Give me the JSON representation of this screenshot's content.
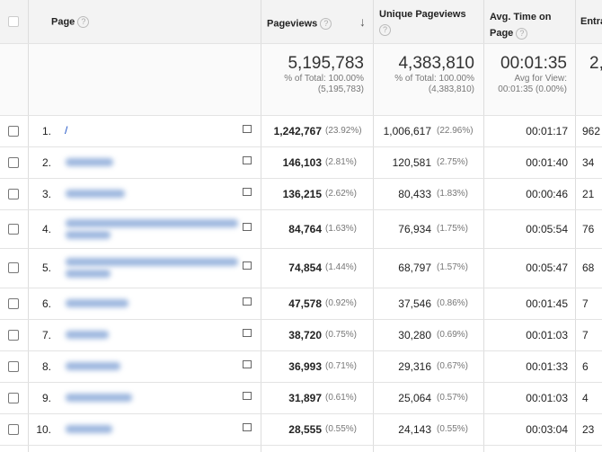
{
  "header": {
    "page": "Page",
    "pageviews": "Pageviews",
    "unique_pageviews": "Unique Pageviews",
    "avg_time": "Avg. Time on Page",
    "entrances": "Entra"
  },
  "totals": {
    "pageviews": "5,195,783",
    "pageviews_note": "% of Total: 100.00%",
    "pageviews_note_total": "(5,195,783)",
    "unique_pageviews": "4,383,810",
    "unique_note": "% of Total: 100.00%",
    "unique_note_total": "(4,383,810)",
    "avg_time": "00:01:35",
    "avg_note": "Avg for View:",
    "avg_note_value": "00:01:35 (0.00%)",
    "entrances": "2,"
  },
  "rows": [
    {
      "index": "1.",
      "page": "/",
      "pageviews": "1,242,767",
      "pageviews_pct": "(23.92%)",
      "unique": "1,006,617",
      "unique_pct": "(22.96%)",
      "avg_time": "00:01:17",
      "entrances": "962"
    },
    {
      "index": "2.",
      "page": null,
      "pageviews": "146,103",
      "pageviews_pct": "(2.81%)",
      "unique": "120,581",
      "unique_pct": "(2.75%)",
      "avg_time": "00:01:40",
      "entrances": "34"
    },
    {
      "index": "3.",
      "page": null,
      "pageviews": "136,215",
      "pageviews_pct": "(2.62%)",
      "unique": "80,433",
      "unique_pct": "(1.83%)",
      "avg_time": "00:00:46",
      "entrances": "21"
    },
    {
      "index": "4.",
      "page": null,
      "pageviews": "84,764",
      "pageviews_pct": "(1.63%)",
      "unique": "76,934",
      "unique_pct": "(1.75%)",
      "avg_time": "00:05:54",
      "entrances": "76"
    },
    {
      "index": "5.",
      "page": null,
      "pageviews": "74,854",
      "pageviews_pct": "(1.44%)",
      "unique": "68,797",
      "unique_pct": "(1.57%)",
      "avg_time": "00:05:47",
      "entrances": "68"
    },
    {
      "index": "6.",
      "page": null,
      "pageviews": "47,578",
      "pageviews_pct": "(0.92%)",
      "unique": "37,546",
      "unique_pct": "(0.86%)",
      "avg_time": "00:01:45",
      "entrances": "7"
    },
    {
      "index": "7.",
      "page": null,
      "pageviews": "38,720",
      "pageviews_pct": "(0.75%)",
      "unique": "30,280",
      "unique_pct": "(0.69%)",
      "avg_time": "00:01:03",
      "entrances": "7"
    },
    {
      "index": "8.",
      "page": null,
      "pageviews": "36,993",
      "pageviews_pct": "(0.71%)",
      "unique": "29,316",
      "unique_pct": "(0.67%)",
      "avg_time": "00:01:33",
      "entrances": "6"
    },
    {
      "index": "9.",
      "page": null,
      "pageviews": "31,897",
      "pageviews_pct": "(0.61%)",
      "unique": "25,064",
      "unique_pct": "(0.57%)",
      "avg_time": "00:01:03",
      "entrances": "4"
    },
    {
      "index": "10.",
      "page": null,
      "pageviews": "28,555",
      "pageviews_pct": "(0.55%)",
      "unique": "24,143",
      "unique_pct": "(0.55%)",
      "avg_time": "00:03:04",
      "entrances": "23"
    }
  ]
}
